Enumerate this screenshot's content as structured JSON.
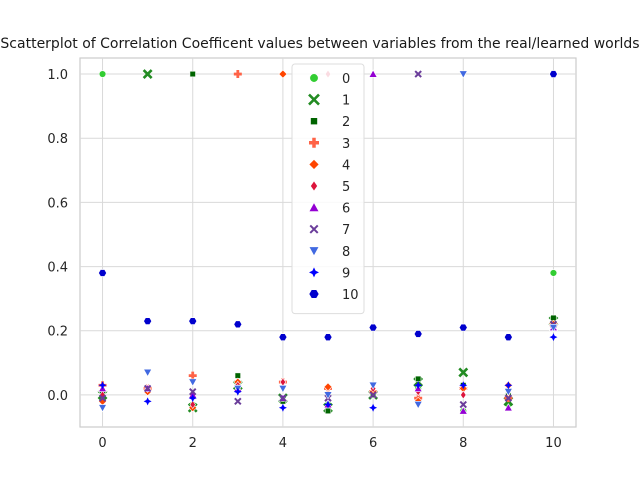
{
  "chart_data": {
    "type": "scatter",
    "title": "Scatterplot of Correlation Coefficent values between variables from the real/learned worlds",
    "xlabel": "",
    "ylabel": "",
    "xlim": [
      -0.5,
      10.5
    ],
    "ylim": [
      -0.1,
      1.05
    ],
    "xticks": [
      0,
      2,
      4,
      6,
      8,
      10
    ],
    "yticks": [
      0.0,
      0.2,
      0.4,
      0.6,
      0.8,
      1.0
    ],
    "grid": true,
    "legend_position": "top-center",
    "series": [
      {
        "name": "0",
        "color": "#32cd32",
        "marker": "circle",
        "x": [
          0,
          1,
          2,
          3,
          4,
          5,
          6,
          7,
          8,
          9,
          10
        ],
        "y": [
          1.0,
          0.02,
          -0.03,
          0.02,
          -0.01,
          -0.03,
          0.0,
          0.02,
          -0.05,
          -0.03,
          0.38
        ]
      },
      {
        "name": "1",
        "color": "#228b22",
        "marker": "x",
        "x": [
          0,
          1,
          2,
          3,
          4,
          5,
          6,
          7,
          8,
          9,
          10
        ],
        "y": [
          0.0,
          1.0,
          -0.04,
          0.03,
          -0.01,
          -0.04,
          0.0,
          0.04,
          0.07,
          -0.02,
          0.23
        ]
      },
      {
        "name": "2",
        "color": "#006400",
        "marker": "square",
        "x": [
          0,
          1,
          2,
          3,
          4,
          5,
          6,
          7,
          8,
          9,
          10
        ],
        "y": [
          0.01,
          0.02,
          1.0,
          0.06,
          -0.02,
          -0.05,
          0.0,
          0.05,
          0.03,
          0.0,
          0.24
        ]
      },
      {
        "name": "3",
        "color": "#ff6347",
        "marker": "plus",
        "x": [
          0,
          1,
          2,
          3,
          4,
          5,
          6,
          7,
          8,
          9,
          10
        ],
        "y": [
          0.03,
          0.02,
          0.06,
          1.0,
          0.04,
          0.02,
          0.01,
          -0.01,
          0.02,
          -0.01,
          0.22
        ]
      },
      {
        "name": "4",
        "color": "#ff4500",
        "marker": "diamond",
        "x": [
          0,
          1,
          2,
          3,
          4,
          5,
          6,
          7,
          8,
          9,
          10
        ],
        "y": [
          -0.02,
          0.01,
          -0.04,
          0.04,
          1.0,
          0.025,
          0.01,
          -0.02,
          0.02,
          0.03,
          0.22
        ]
      },
      {
        "name": "5",
        "color": "#dc143c",
        "marker": "thin-diamond",
        "x": [
          0,
          1,
          2,
          3,
          4,
          5,
          6,
          7,
          8,
          9,
          10
        ],
        "y": [
          0.0,
          0.02,
          -0.03,
          0.03,
          0.04,
          1.0,
          0.02,
          0.01,
          0.0,
          0.01,
          0.21
        ]
      },
      {
        "name": "6",
        "color": "#9400d3",
        "marker": "triangle-up",
        "x": [
          0,
          1,
          2,
          3,
          4,
          5,
          6,
          7,
          8,
          9,
          10
        ],
        "y": [
          0.02,
          0.02,
          0.0,
          0.02,
          -0.01,
          -0.03,
          1.0,
          0.02,
          -0.05,
          -0.04,
          0.21
        ]
      },
      {
        "name": "7",
        "color": "#6a3d9a",
        "marker": "x-small",
        "x": [
          0,
          1,
          2,
          3,
          4,
          5,
          6,
          7,
          8,
          9,
          10
        ],
        "y": [
          -0.01,
          0.02,
          0.01,
          -0.02,
          -0.01,
          -0.01,
          0.0,
          1.0,
          -0.03,
          -0.01,
          0.22
        ]
      },
      {
        "name": "8",
        "color": "#4169e1",
        "marker": "triangle-down",
        "x": [
          0,
          1,
          2,
          3,
          4,
          5,
          6,
          7,
          8,
          9,
          10
        ],
        "y": [
          -0.04,
          0.07,
          0.04,
          0.02,
          0.02,
          0.0,
          0.03,
          -0.03,
          1.0,
          0.01,
          0.21
        ]
      },
      {
        "name": "9",
        "color": "#0000ff",
        "marker": "star",
        "x": [
          0,
          1,
          2,
          3,
          4,
          5,
          6,
          7,
          8,
          9,
          10
        ],
        "y": [
          0.03,
          -0.02,
          -0.01,
          0.01,
          -0.04,
          -0.03,
          -0.04,
          0.03,
          0.03,
          0.03,
          0.18
        ]
      },
      {
        "name": "10",
        "color": "#0000cd",
        "marker": "hexagon",
        "x": [
          0,
          1,
          2,
          3,
          4,
          5,
          6,
          7,
          8,
          9,
          10
        ],
        "y": [
          0.38,
          0.23,
          0.23,
          0.22,
          0.18,
          0.18,
          0.21,
          0.19,
          0.21,
          0.18,
          1.0
        ]
      }
    ]
  }
}
